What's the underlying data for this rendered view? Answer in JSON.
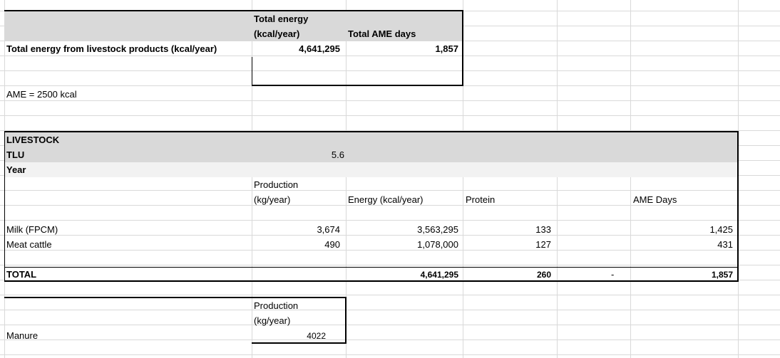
{
  "summary": {
    "row_label": "Total energy from livestock products (kcal/year)",
    "energy_header_line1": "Total energy",
    "energy_header_line2": "(kcal/year)",
    "ame_header": "Total AME days",
    "energy_value": "4,641,295",
    "ame_value": "1,857"
  },
  "ame_note": "AME = 2500 kcal",
  "livestock": {
    "title": "LIVESTOCK",
    "tlu_label": "TLU",
    "tlu_value": "5.6",
    "year_label": "Year"
  },
  "table": {
    "production_header_line1": "Production",
    "production_header_line2": "(kg/year)",
    "energy_header": "Energy (kcal/year)",
    "protein_header": "Protein",
    "ame_header": "AME Days",
    "rows": [
      {
        "label": "Milk (FPCM)",
        "production": "3,674",
        "energy": "3,563,295",
        "protein": "133",
        "ame": "1,425"
      },
      {
        "label": "Meat cattle",
        "production": "490",
        "energy": "1,078,000",
        "protein": "127",
        "ame": "431"
      }
    ],
    "total": {
      "label": "TOTAL",
      "energy": "4,641,295",
      "protein": "260",
      "dash": "-",
      "ame": "1,857"
    }
  },
  "manure": {
    "production_header_line1": "Production",
    "production_header_line2": "(kg/year)",
    "label": "Manure",
    "value": "4022"
  }
}
